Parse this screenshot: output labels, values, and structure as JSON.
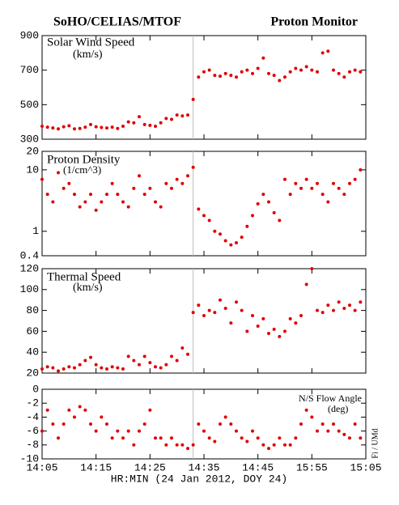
{
  "title": "SoHO/CELIAS/MTOF",
  "title_right": "Proton Monitor",
  "xlabel": "HR:MIN (24 Jan 2012, DOY 24)",
  "credit": "Fi / UMd",
  "xlim": [
    845,
    905
  ],
  "xticks": [
    {
      "value": 845,
      "label": "14:05"
    },
    {
      "value": 855,
      "label": "14:15"
    },
    {
      "value": 865,
      "label": "14:25"
    },
    {
      "value": 875,
      "label": "14:35"
    },
    {
      "value": 885,
      "label": "14:45"
    },
    {
      "value": 895,
      "label": "15:55"
    },
    {
      "value": 905,
      "label": "15:05"
    }
  ],
  "chart_data": [
    {
      "type": "scatter",
      "title": "Solar Wind Speed",
      "unit": "(km/s)",
      "color": "#e00000",
      "vline": 873,
      "ylim": [
        300,
        900
      ],
      "yticks": [
        300,
        500,
        700,
        900
      ],
      "x": [
        845,
        846,
        847,
        848,
        849,
        850,
        851,
        852,
        853,
        854,
        855,
        856,
        857,
        858,
        859,
        860,
        861,
        862,
        863,
        864,
        865,
        866,
        867,
        868,
        869,
        870,
        871,
        872,
        873,
        874,
        875,
        876,
        877,
        878,
        879,
        880,
        881,
        882,
        883,
        884,
        885,
        886,
        887,
        888,
        889,
        890,
        891,
        892,
        893,
        894,
        895,
        896,
        897,
        898,
        899,
        900,
        901,
        902,
        903,
        904
      ],
      "values": [
        375,
        370,
        365,
        360,
        372,
        378,
        360,
        362,
        370,
        385,
        372,
        368,
        365,
        370,
        362,
        375,
        400,
        395,
        430,
        385,
        380,
        375,
        395,
        420,
        415,
        440,
        435,
        440,
        530,
        660,
        690,
        700,
        670,
        665,
        680,
        670,
        660,
        690,
        700,
        680,
        710,
        770,
        680,
        670,
        640,
        660,
        690,
        710,
        700,
        720,
        700,
        690,
        800,
        810,
        700,
        680,
        660,
        690,
        700,
        690
      ]
    },
    {
      "type": "scatter",
      "title": "Proton Density",
      "unit": "(1/cm^3)",
      "color": "#e00000",
      "vline": 873,
      "log": true,
      "ylim": [
        0.4,
        20
      ],
      "yticks": [
        {
          "value": 0.4,
          "label": "0.4"
        },
        1,
        10,
        20
      ],
      "x": [
        845,
        846,
        847,
        848,
        849,
        850,
        851,
        852,
        853,
        854,
        855,
        856,
        857,
        858,
        859,
        860,
        861,
        862,
        863,
        864,
        865,
        866,
        867,
        868,
        869,
        870,
        871,
        872,
        873,
        874,
        875,
        876,
        877,
        878,
        879,
        880,
        881,
        882,
        883,
        884,
        885,
        886,
        887,
        888,
        889,
        890,
        891,
        892,
        893,
        894,
        895,
        896,
        897,
        898,
        899,
        900,
        901,
        902,
        903,
        904
      ],
      "values": [
        7,
        4,
        3,
        9,
        5,
        6,
        4,
        2.5,
        3,
        4,
        2.2,
        3,
        4,
        6,
        4,
        3,
        2.5,
        5,
        8,
        4,
        5,
        3,
        2.5,
        6,
        5,
        7,
        6,
        8,
        11,
        2.3,
        1.8,
        1.5,
        1,
        0.9,
        0.7,
        0.6,
        0.65,
        0.8,
        1.2,
        1.8,
        2.8,
        4,
        3,
        2,
        1.5,
        7,
        4,
        6,
        5,
        7,
        5,
        6,
        4,
        3,
        6,
        5,
        4,
        6,
        7,
        10
      ]
    },
    {
      "type": "scatter",
      "title": "Thermal Speed",
      "unit": "(km/s)",
      "color": "#e00000",
      "vline": 873,
      "ylim": [
        20,
        120
      ],
      "yticks": [
        20,
        40,
        60,
        80,
        100,
        120
      ],
      "x": [
        845,
        846,
        847,
        848,
        849,
        850,
        851,
        852,
        853,
        854,
        855,
        856,
        857,
        858,
        859,
        860,
        861,
        862,
        863,
        864,
        865,
        866,
        867,
        868,
        869,
        870,
        871,
        872,
        873,
        874,
        875,
        876,
        877,
        878,
        879,
        880,
        881,
        882,
        883,
        884,
        885,
        886,
        887,
        888,
        889,
        890,
        891,
        892,
        893,
        894,
        895,
        896,
        897,
        898,
        899,
        900,
        901,
        902,
        903,
        904
      ],
      "values": [
        24,
        26,
        25,
        22,
        24,
        26,
        25,
        28,
        32,
        35,
        28,
        25,
        24,
        26,
        25,
        24,
        36,
        32,
        28,
        36,
        30,
        26,
        25,
        28,
        36,
        32,
        44,
        38,
        78,
        85,
        75,
        80,
        78,
        90,
        82,
        68,
        88,
        80,
        60,
        75,
        65,
        72,
        58,
        62,
        55,
        60,
        72,
        68,
        75,
        105,
        120,
        80,
        78,
        85,
        80,
        88,
        82,
        85,
        80,
        88
      ]
    },
    {
      "type": "scatter",
      "title": "N/S Flow Angle",
      "unit": "(deg)",
      "color": "#e00000",
      "vline": 873,
      "ylim": [
        -10,
        0
      ],
      "yticks": [
        -10,
        -8,
        -6,
        -4,
        -2,
        0
      ],
      "x": [
        845,
        846,
        847,
        848,
        849,
        850,
        851,
        852,
        853,
        854,
        855,
        856,
        857,
        858,
        859,
        860,
        861,
        862,
        863,
        864,
        865,
        866,
        867,
        868,
        869,
        870,
        871,
        872,
        873,
        874,
        875,
        876,
        877,
        878,
        879,
        880,
        881,
        882,
        883,
        884,
        885,
        886,
        887,
        888,
        889,
        890,
        891,
        892,
        893,
        894,
        895,
        896,
        897,
        898,
        899,
        900,
        901,
        902,
        903,
        904
      ],
      "values": [
        -6,
        -3,
        -5,
        -7,
        -5,
        -3,
        -4,
        -2.5,
        -3,
        -5,
        -6,
        -4,
        -5,
        -7,
        -6,
        -7,
        -6,
        -8,
        -6,
        -5,
        -3,
        -7,
        -7,
        -8,
        -7,
        -8,
        -8,
        -8.5,
        -8,
        -5,
        -6,
        -7,
        -7.5,
        -5,
        -4,
        -5,
        -6,
        -7,
        -7.5,
        -6,
        -7,
        -8,
        -8.5,
        -8,
        -7,
        -8,
        -8,
        -7,
        -5,
        -3,
        -4,
        -6,
        -5,
        -6,
        -5,
        -6,
        -6.5,
        -7,
        -5,
        -7
      ]
    }
  ]
}
